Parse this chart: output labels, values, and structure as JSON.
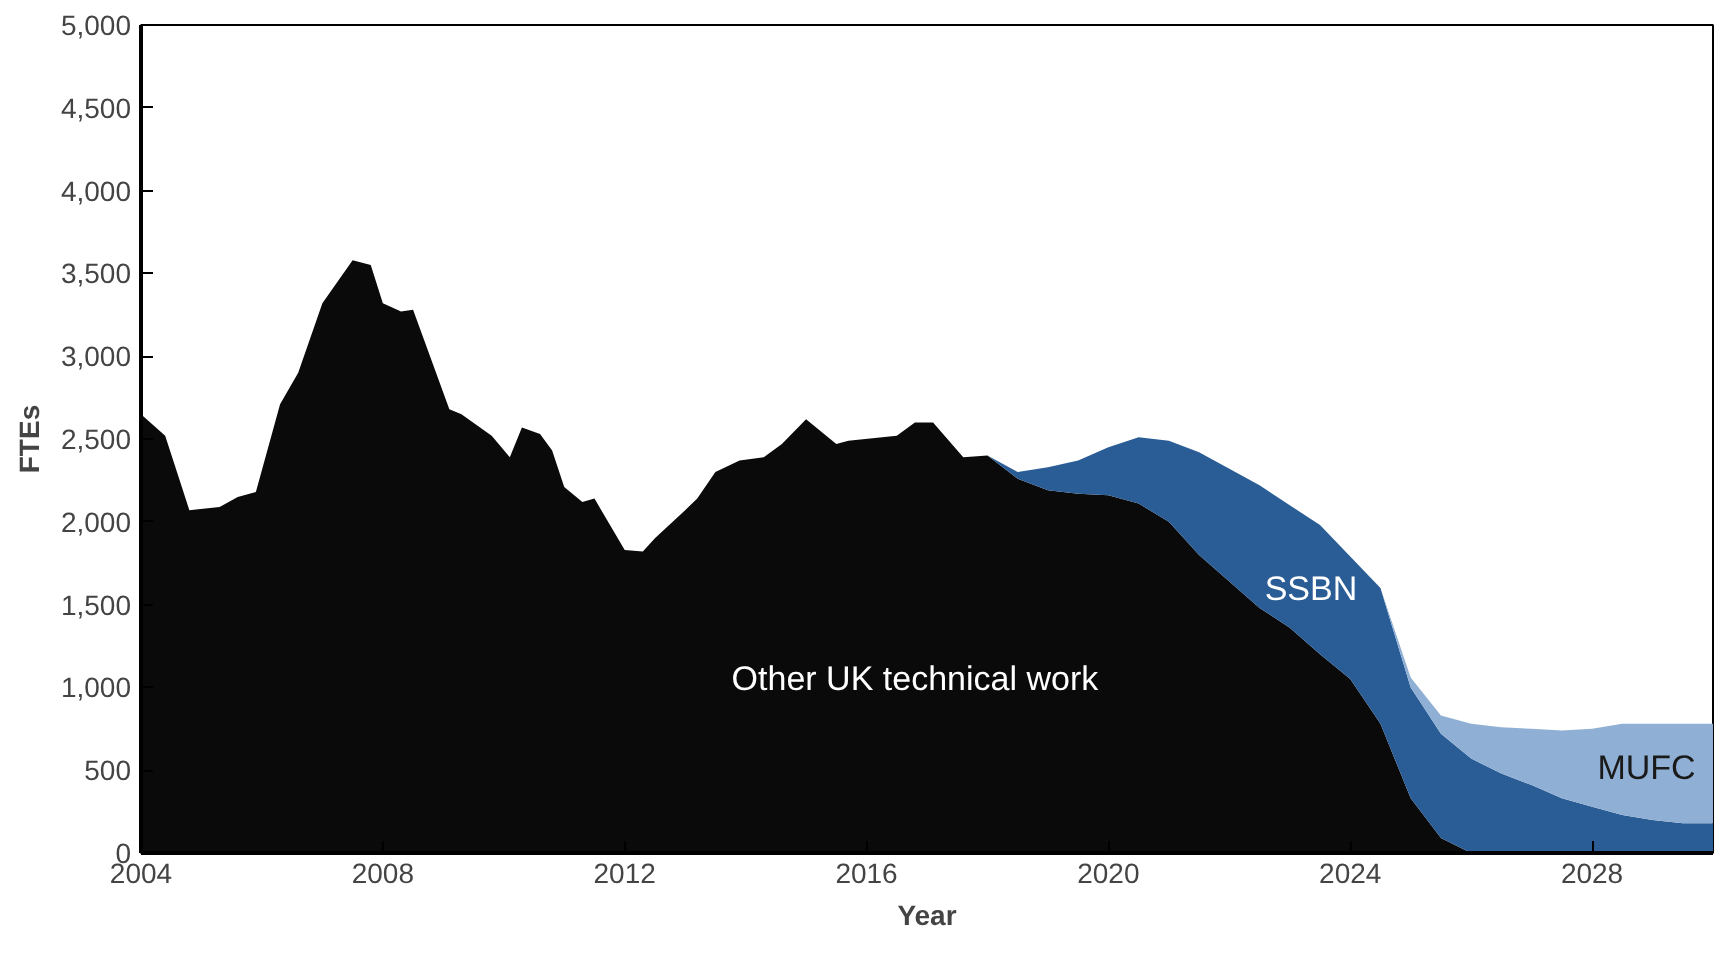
{
  "chart_data": {
    "type": "area",
    "stacked": true,
    "xlabel": "Year",
    "ylabel": "FTEs",
    "x": [
      2004,
      2004.4,
      2004.8,
      2005.3,
      2005.6,
      2005.9,
      2006.3,
      2006.6,
      2007.0,
      2007.5,
      2007.8,
      2008.0,
      2008.3,
      2008.5,
      2009.1,
      2009.3,
      2009.8,
      2010.1,
      2010.3,
      2010.6,
      2010.8,
      2011.0,
      2011.3,
      2011.5,
      2012.0,
      2012.3,
      2012.5,
      2013.0,
      2013.2,
      2013.5,
      2013.9,
      2014.3,
      2014.6,
      2015.0,
      2015.5,
      2015.7,
      2016.5,
      2016.8,
      2017.1,
      2017.6,
      2018,
      2018.5,
      2019,
      2019.5,
      2020,
      2020.5,
      2021,
      2021.5,
      2022,
      2022.5,
      2023,
      2023.5,
      2024,
      2024.5,
      2025,
      2025.5,
      2026,
      2026.5,
      2027,
      2027.5,
      2028,
      2028.5,
      2029,
      2029.5,
      2030
    ],
    "series": [
      {
        "name": "Other UK technical work",
        "color": "#0a0a0a",
        "values": [
          2650,
          2520,
          2070,
          2090,
          2150,
          2180,
          2710,
          2900,
          3320,
          3580,
          3550,
          3320,
          3270,
          3280,
          2680,
          2650,
          2520,
          2390,
          2570,
          2530,
          2430,
          2210,
          2120,
          2140,
          1830,
          1820,
          1900,
          2070,
          2140,
          2300,
          2370,
          2390,
          2470,
          2620,
          2470,
          2490,
          2520,
          2600,
          2600,
          2390,
          2400,
          2260,
          2190,
          2170,
          2160,
          2110,
          2000,
          1800,
          1640,
          1480,
          1360,
          1200,
          1050,
          780,
          330,
          90,
          0,
          0,
          0,
          0,
          0,
          0,
          0,
          0,
          0
        ]
      },
      {
        "name": "SSBN",
        "color": "#2a5c96",
        "values": [
          null,
          null,
          null,
          null,
          null,
          null,
          null,
          null,
          null,
          null,
          null,
          null,
          null,
          null,
          null,
          null,
          null,
          null,
          null,
          null,
          null,
          null,
          null,
          null,
          null,
          null,
          null,
          null,
          null,
          null,
          null,
          null,
          null,
          null,
          null,
          null,
          null,
          null,
          null,
          null,
          0,
          40,
          140,
          200,
          290,
          400,
          490,
          620,
          680,
          740,
          740,
          780,
          740,
          820,
          670,
          630,
          570,
          480,
          410,
          330,
          280,
          230,
          200,
          180,
          180
        ]
      },
      {
        "name": "MUFC",
        "color": "#8fb0d4",
        "values": [
          null,
          null,
          null,
          null,
          null,
          null,
          null,
          null,
          null,
          null,
          null,
          null,
          null,
          null,
          null,
          null,
          null,
          null,
          null,
          null,
          null,
          null,
          null,
          null,
          null,
          null,
          null,
          null,
          null,
          null,
          null,
          null,
          null,
          null,
          null,
          null,
          null,
          null,
          null,
          null,
          null,
          null,
          null,
          null,
          null,
          null,
          null,
          null,
          null,
          null,
          null,
          null,
          null,
          0,
          60,
          110,
          210,
          280,
          340,
          410,
          470,
          550,
          580,
          600,
          600
        ]
      }
    ],
    "xlim": [
      2004,
      2030
    ],
    "xticks": [
      2004,
      2008,
      2012,
      2016,
      2020,
      2024,
      2028
    ],
    "ylim": [
      0,
      5000
    ],
    "yticks": [
      {
        "value": 0,
        "label": "0"
      },
      {
        "value": 500,
        "label": "500"
      },
      {
        "value": 1000,
        "label": "1,000"
      },
      {
        "value": 1500,
        "label": "1,500"
      },
      {
        "value": 2000,
        "label": "2,000"
      },
      {
        "value": 2500,
        "label": "2,500"
      },
      {
        "value": 3000,
        "label": "3,000"
      },
      {
        "value": 3500,
        "label": "3,500"
      },
      {
        "value": 4000,
        "label": "4,000"
      },
      {
        "value": 4500,
        "label": "4,500"
      },
      {
        "value": 5000,
        "label": "5,000"
      }
    ],
    "grid": false,
    "legend": false
  }
}
